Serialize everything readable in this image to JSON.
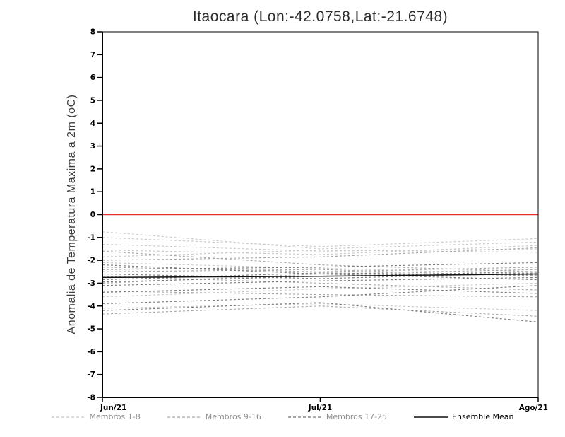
{
  "chart_data": {
    "type": "line",
    "title": "Itaocara (Lon:-42.0758,Lat:-21.6748)",
    "ylabel": "Anomalia de Temperatura Maxima a 2m (oC)",
    "x_categories": [
      "Jun/21",
      "Jul/21",
      "Ago/21"
    ],
    "ylim": [
      -8,
      8
    ],
    "y_ticks": [
      8,
      7,
      6,
      5,
      4,
      3,
      2,
      1,
      0,
      -1,
      -2,
      -3,
      -4,
      -5,
      -6,
      -7,
      -8
    ],
    "grid": false,
    "zero_line": {
      "y": 0,
      "color": "#ee2e24"
    },
    "frame_color": "#000000",
    "groups": [
      {
        "name": "Membros 1-8",
        "color": "#c8c8c8",
        "dash": "3 3",
        "series": [
          [
            -0.75,
            -1.5,
            -1.2
          ],
          [
            -1.0,
            -1.4,
            -1.05
          ],
          [
            -1.3,
            -1.6,
            -1.5
          ],
          [
            -1.55,
            -1.75,
            -1.35
          ],
          [
            -1.85,
            -1.55,
            -1.65
          ],
          [
            -2.1,
            -2.35,
            -2.6
          ],
          [
            -3.6,
            -3.25,
            -3.0
          ],
          [
            -4.1,
            -3.9,
            -4.2
          ]
        ]
      },
      {
        "name": "Membros 9-16",
        "color": "#a3a3a3",
        "dash": "3 3",
        "series": [
          [
            -1.6,
            -2.2,
            -2.5
          ],
          [
            -2.0,
            -1.85,
            -1.45
          ],
          [
            -2.3,
            -2.5,
            -2.3
          ],
          [
            -2.5,
            -2.4,
            -2.7
          ],
          [
            -2.7,
            -3.0,
            -3.3
          ],
          [
            -3.0,
            -2.6,
            -2.4
          ],
          [
            -3.35,
            -3.5,
            -3.6
          ],
          [
            -4.35,
            -4.0,
            -4.45
          ]
        ]
      },
      {
        "name": "Membros 17-25",
        "color": "#767676",
        "dash": "3 3",
        "series": [
          [
            -2.2,
            -2.6,
            -2.85
          ],
          [
            -2.4,
            -2.3,
            -2.1
          ],
          [
            -2.6,
            -2.8,
            -2.55
          ],
          [
            -2.85,
            -2.55,
            -2.65
          ],
          [
            -3.1,
            -2.9,
            -2.75
          ],
          [
            -3.4,
            -3.15,
            -3.45
          ],
          [
            -3.9,
            -3.6,
            -3.1
          ],
          [
            -4.2,
            -3.85,
            -4.7
          ],
          [
            -2.95,
            -2.7,
            -2.5
          ]
        ]
      }
    ],
    "mean": {
      "name": "Ensemble Mean",
      "color": "#111111",
      "values": [
        -2.75,
        -2.7,
        -2.6
      ]
    },
    "legend": [
      {
        "label": "Membros 1-8",
        "color": "#c8c8c8",
        "dash": true,
        "label_color": "#8f8f8f"
      },
      {
        "label": "Membros 9-16",
        "color": "#a3a3a3",
        "dash": true,
        "label_color": "#8f8f8f"
      },
      {
        "label": "Membros 17-25",
        "color": "#767676",
        "dash": true,
        "label_color": "#8f8f8f"
      },
      {
        "label": "Ensemble Mean",
        "color": "#111111",
        "dash": false,
        "label_color": "#000000"
      }
    ]
  }
}
